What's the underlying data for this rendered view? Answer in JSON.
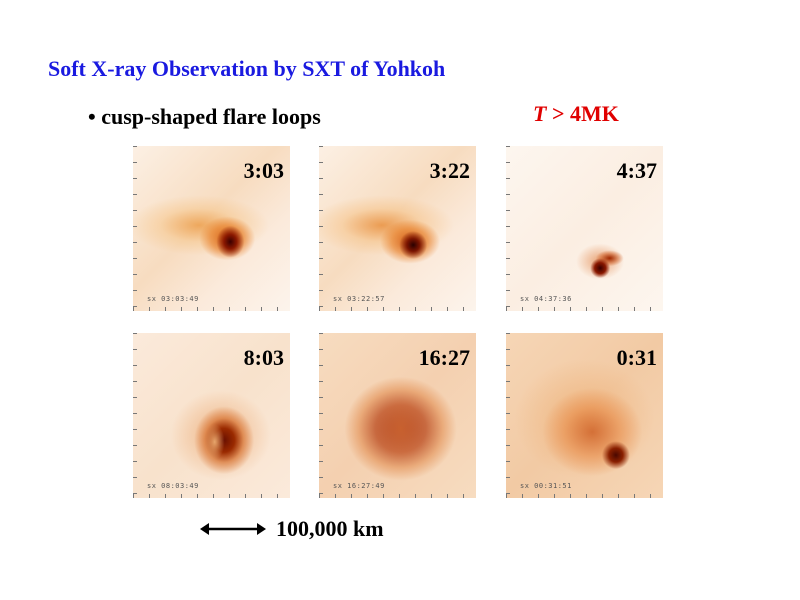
{
  "slide": {
    "title": "Soft X-ray Observation by SXT of Yohkoh",
    "bullet": "• cusp-shaped flare loops",
    "temperature": {
      "variable": "T",
      "rest": " > 4MK"
    }
  },
  "panels": [
    {
      "time": "3:03",
      "footer": "sx   03:03:49"
    },
    {
      "time": "3:22",
      "footer": "sx   03:22:57"
    },
    {
      "time": "4:37",
      "footer": "sx   04:37:36"
    },
    {
      "time": "8:03",
      "footer": "sx   08:03:49"
    },
    {
      "time": "16:27",
      "footer": "sx   16:27:49"
    },
    {
      "time": "0:31",
      "footer": "sx   00:31:51"
    }
  ],
  "scale_bar": {
    "label": "100,000 km"
  },
  "colors": {
    "title": "#1a1ae0",
    "temperature": "#e00000"
  }
}
